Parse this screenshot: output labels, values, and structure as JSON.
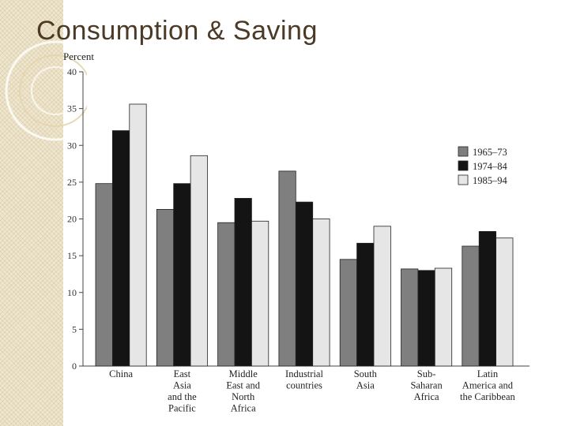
{
  "slide": {
    "title": "Consumption & Saving"
  },
  "chart_data": {
    "type": "bar",
    "title": "",
    "ylabel": "Percent",
    "xlabel": "",
    "ylim": [
      0,
      40
    ],
    "yticks": [
      0,
      5,
      10,
      15,
      20,
      25,
      30,
      35,
      40
    ],
    "categories": [
      [
        "China"
      ],
      [
        "East",
        "Asia",
        "and the",
        "Pacific"
      ],
      [
        "Middle",
        "East and",
        "North",
        "Africa"
      ],
      [
        "Industrial",
        "countries"
      ],
      [
        "South",
        "Asia"
      ],
      [
        "Sub-",
        "Saharan",
        "Africa"
      ],
      [
        "Latin",
        "America and",
        "the Caribbean"
      ]
    ],
    "series": [
      {
        "name": "1965–73",
        "color": "#7f7f7f",
        "values": [
          24.8,
          21.3,
          19.5,
          26.5,
          14.5,
          13.2,
          16.3
        ]
      },
      {
        "name": "1974–84",
        "color": "#141414",
        "values": [
          32.0,
          24.8,
          22.8,
          22.3,
          16.7,
          13.0,
          18.3
        ]
      },
      {
        "name": "1985–94",
        "color": "#e6e6e6",
        "values": [
          35.6,
          28.6,
          19.7,
          20.0,
          19.0,
          13.3,
          17.4
        ]
      }
    ],
    "legend_position": "right",
    "grid": false
  }
}
